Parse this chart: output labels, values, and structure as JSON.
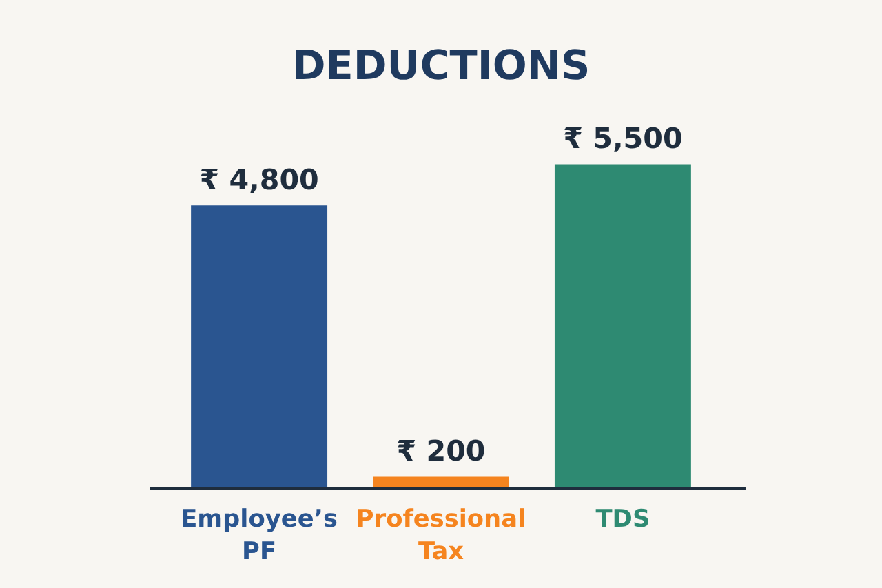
{
  "chart_data": {
    "type": "bar",
    "title": "DEDUCTIONS",
    "categories": [
      "Employee’s PF",
      "Professional Tax",
      "TDS"
    ],
    "values": [
      4800,
      200,
      5500
    ],
    "colors": [
      "#2a5590",
      "#f5841f",
      "#2e8a72"
    ],
    "value_labels": [
      "₹ 4,800",
      "₹ 200",
      "₹ 5,500"
    ]
  }
}
